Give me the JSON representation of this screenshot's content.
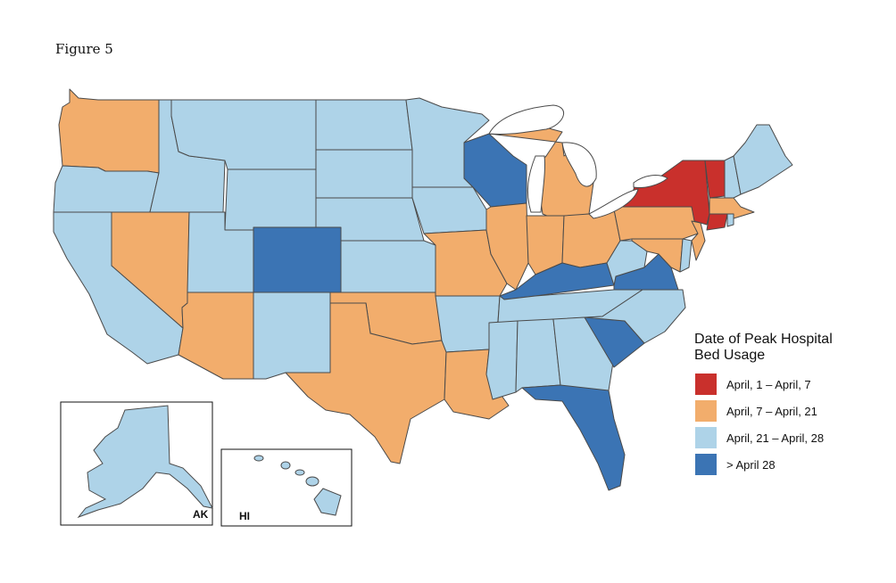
{
  "figure_label": "Figure 5",
  "legend": {
    "title_line1": "Date of Peak Hospital",
    "title_line2": "Bed Usage",
    "items": [
      {
        "label": "April, 1 – April, 7",
        "color": "#c9302c"
      },
      {
        "label": "April, 7 – April, 21",
        "color": "#f2ad6c"
      },
      {
        "label": "April, 21 – April, 28",
        "color": "#aed3e8"
      },
      {
        "label": "> April 28",
        "color": "#3b74b4"
      }
    ]
  },
  "insets": {
    "alaska": "AK",
    "hawaii": "HI"
  },
  "state_categories": {
    "WA": 1,
    "OR": 2,
    "CA": 2,
    "ID": 2,
    "NV": 1,
    "MT": 2,
    "WY": 2,
    "UT": 2,
    "AZ": 1,
    "CO": 3,
    "NM": 2,
    "ND": 2,
    "SD": 2,
    "NE": 2,
    "KS": 2,
    "OK": 1,
    "TX": 1,
    "MN": 2,
    "IA": 2,
    "MO": 1,
    "AR": 2,
    "LA": 1,
    "WI": 3,
    "IL": 1,
    "MI": 1,
    "IN": 1,
    "OH": 1,
    "KY": 3,
    "TN": 2,
    "MS": 2,
    "AL": 2,
    "GA": 2,
    "FL": 3,
    "SC": 3,
    "NC": 2,
    "VA": 3,
    "WV": 2,
    "MD": 1,
    "DE": 2,
    "PA": 1,
    "NJ": 1,
    "NY": 0,
    "CT": 0,
    "MA": 1,
    "RI": 2,
    "VT": 0,
    "NH": 2,
    "ME": 2,
    "AK": 2,
    "HI": 2
  }
}
